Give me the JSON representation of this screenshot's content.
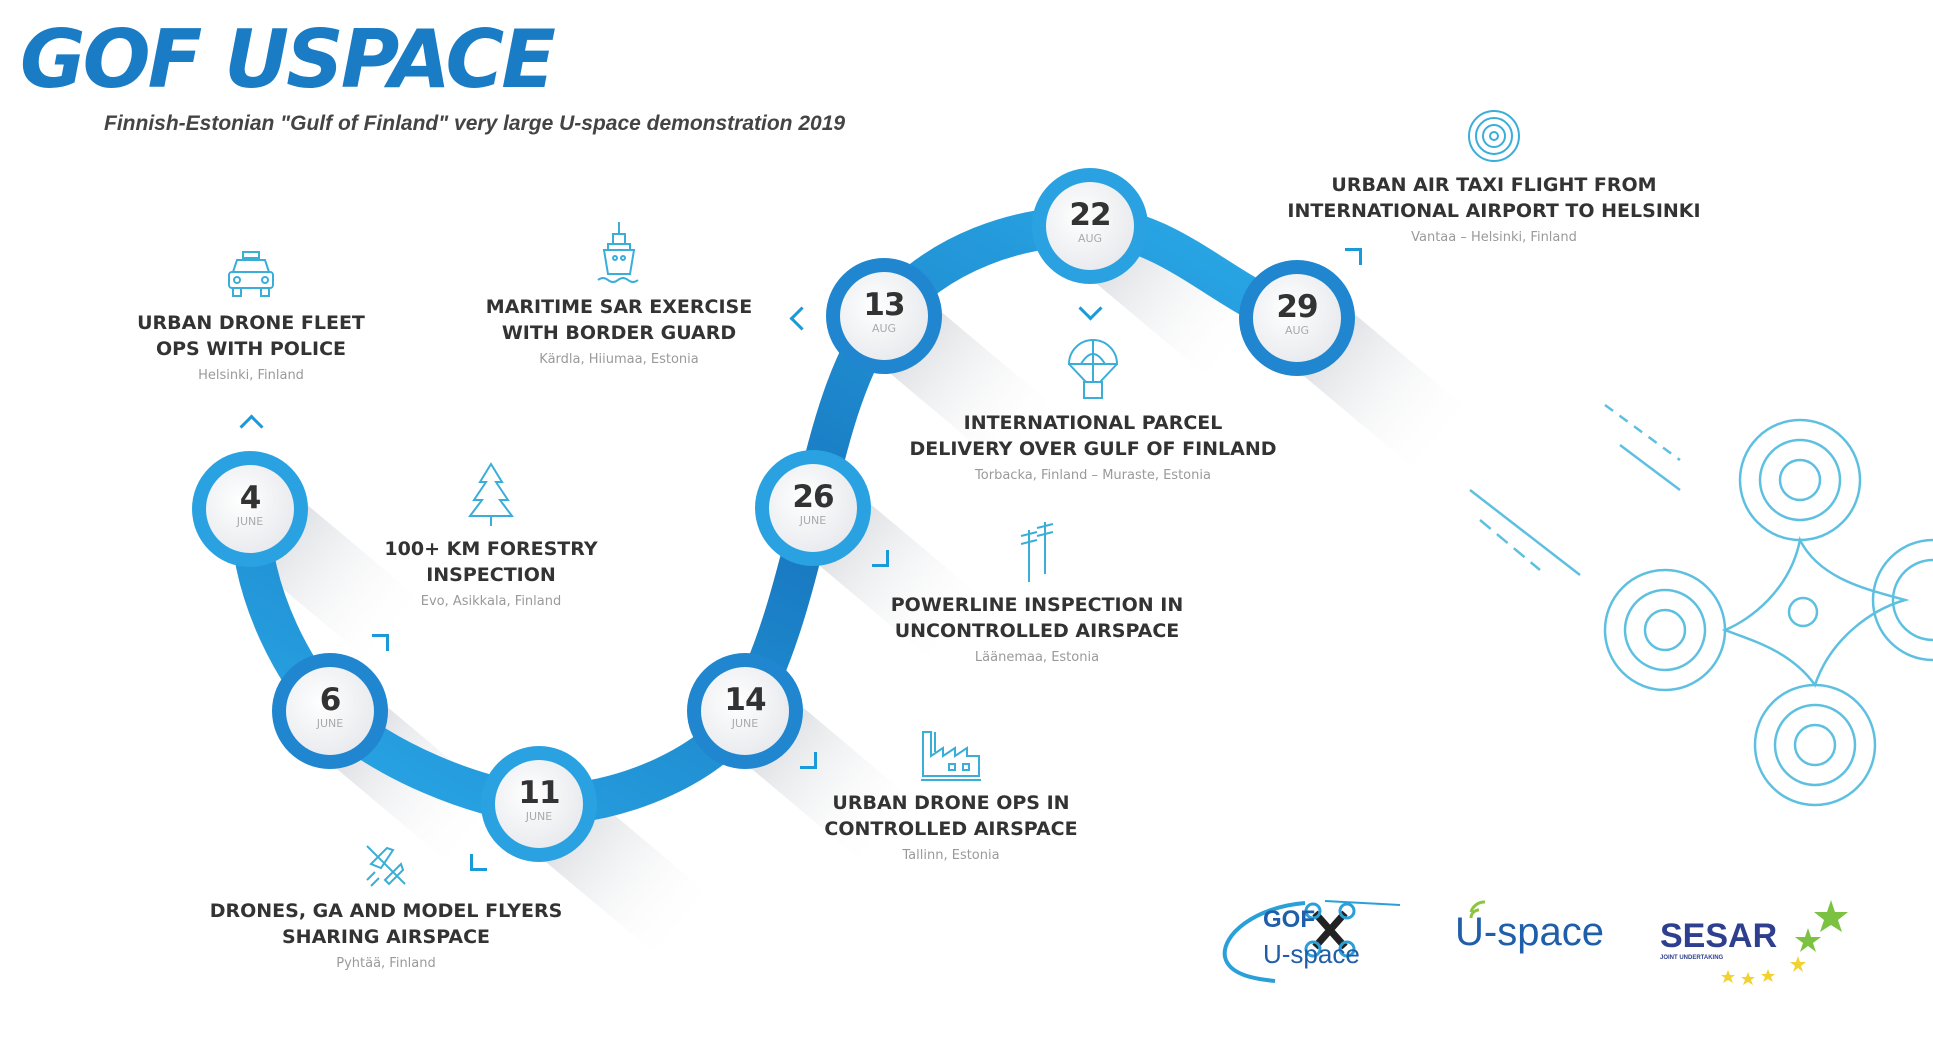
{
  "header": {
    "title": "GOF USPACE",
    "subtitle": "Finnish-Estonian \"Gulf of Finland\" very large U-space demonstration 2019"
  },
  "colors": {
    "brand_blue": "#1a7cc4",
    "ribbon_dark": "#1878c0",
    "ribbon_light": "#2aaae8",
    "icon_line": "#3aaed8"
  },
  "events": [
    {
      "day": "4",
      "month": "JUNE",
      "title1": "URBAN DRONE FLEET",
      "title2": "OPS WITH POLICE",
      "location": "Helsinki, Finland",
      "icon": "police-car-icon"
    },
    {
      "day": "6",
      "month": "JUNE",
      "title1": "100+ KM FORESTRY",
      "title2": "INSPECTION",
      "location": "Evo, Asikkala, Finland",
      "icon": "tree-icon"
    },
    {
      "day": "11",
      "month": "JUNE",
      "title1": "DRONES, GA AND MODEL FLYERS",
      "title2": "SHARING AIRSPACE",
      "location": "Pyhtää, Finland",
      "icon": "airplane-icon"
    },
    {
      "day": "14",
      "month": "JUNE",
      "title1": "URBAN DRONE OPS IN",
      "title2": "CONTROLLED AIRSPACE",
      "location": "Tallinn, Estonia",
      "icon": "factory-icon"
    },
    {
      "day": "26",
      "month": "JUNE",
      "title1": "POWERLINE INSPECTION IN",
      "title2": "UNCONTROLLED AIRSPACE",
      "location": "Läänemaa, Estonia",
      "icon": "powerline-icon"
    },
    {
      "day": "13",
      "month": "AUG",
      "title1": "MARITIME SAR EXERCISE",
      "title2": "WITH BORDER GUARD",
      "location": "Kärdla, Hiiumaa, Estonia",
      "icon": "ship-icon"
    },
    {
      "day": "22",
      "month": "AUG",
      "title1": "INTERNATIONAL PARCEL",
      "title2": "DELIVERY OVER GULF OF FINLAND",
      "location": "Torbacka, Finland – Muraste, Estonia",
      "icon": "parachute-parcel-icon"
    },
    {
      "day": "29",
      "month": "AUG",
      "title1": "URBAN AIR TAXI FLIGHT FROM",
      "title2": "INTERNATIONAL AIRPORT TO HELSINKI",
      "location": "Vantaa – Helsinki, Finland",
      "icon": "radar-target-icon"
    }
  ],
  "logos": {
    "gof_top": "GOF",
    "gof_bottom": "U-space",
    "uspace": "U-space",
    "sesar": "SESAR",
    "sesar_sub": "JOINT UNDERTAKING"
  }
}
